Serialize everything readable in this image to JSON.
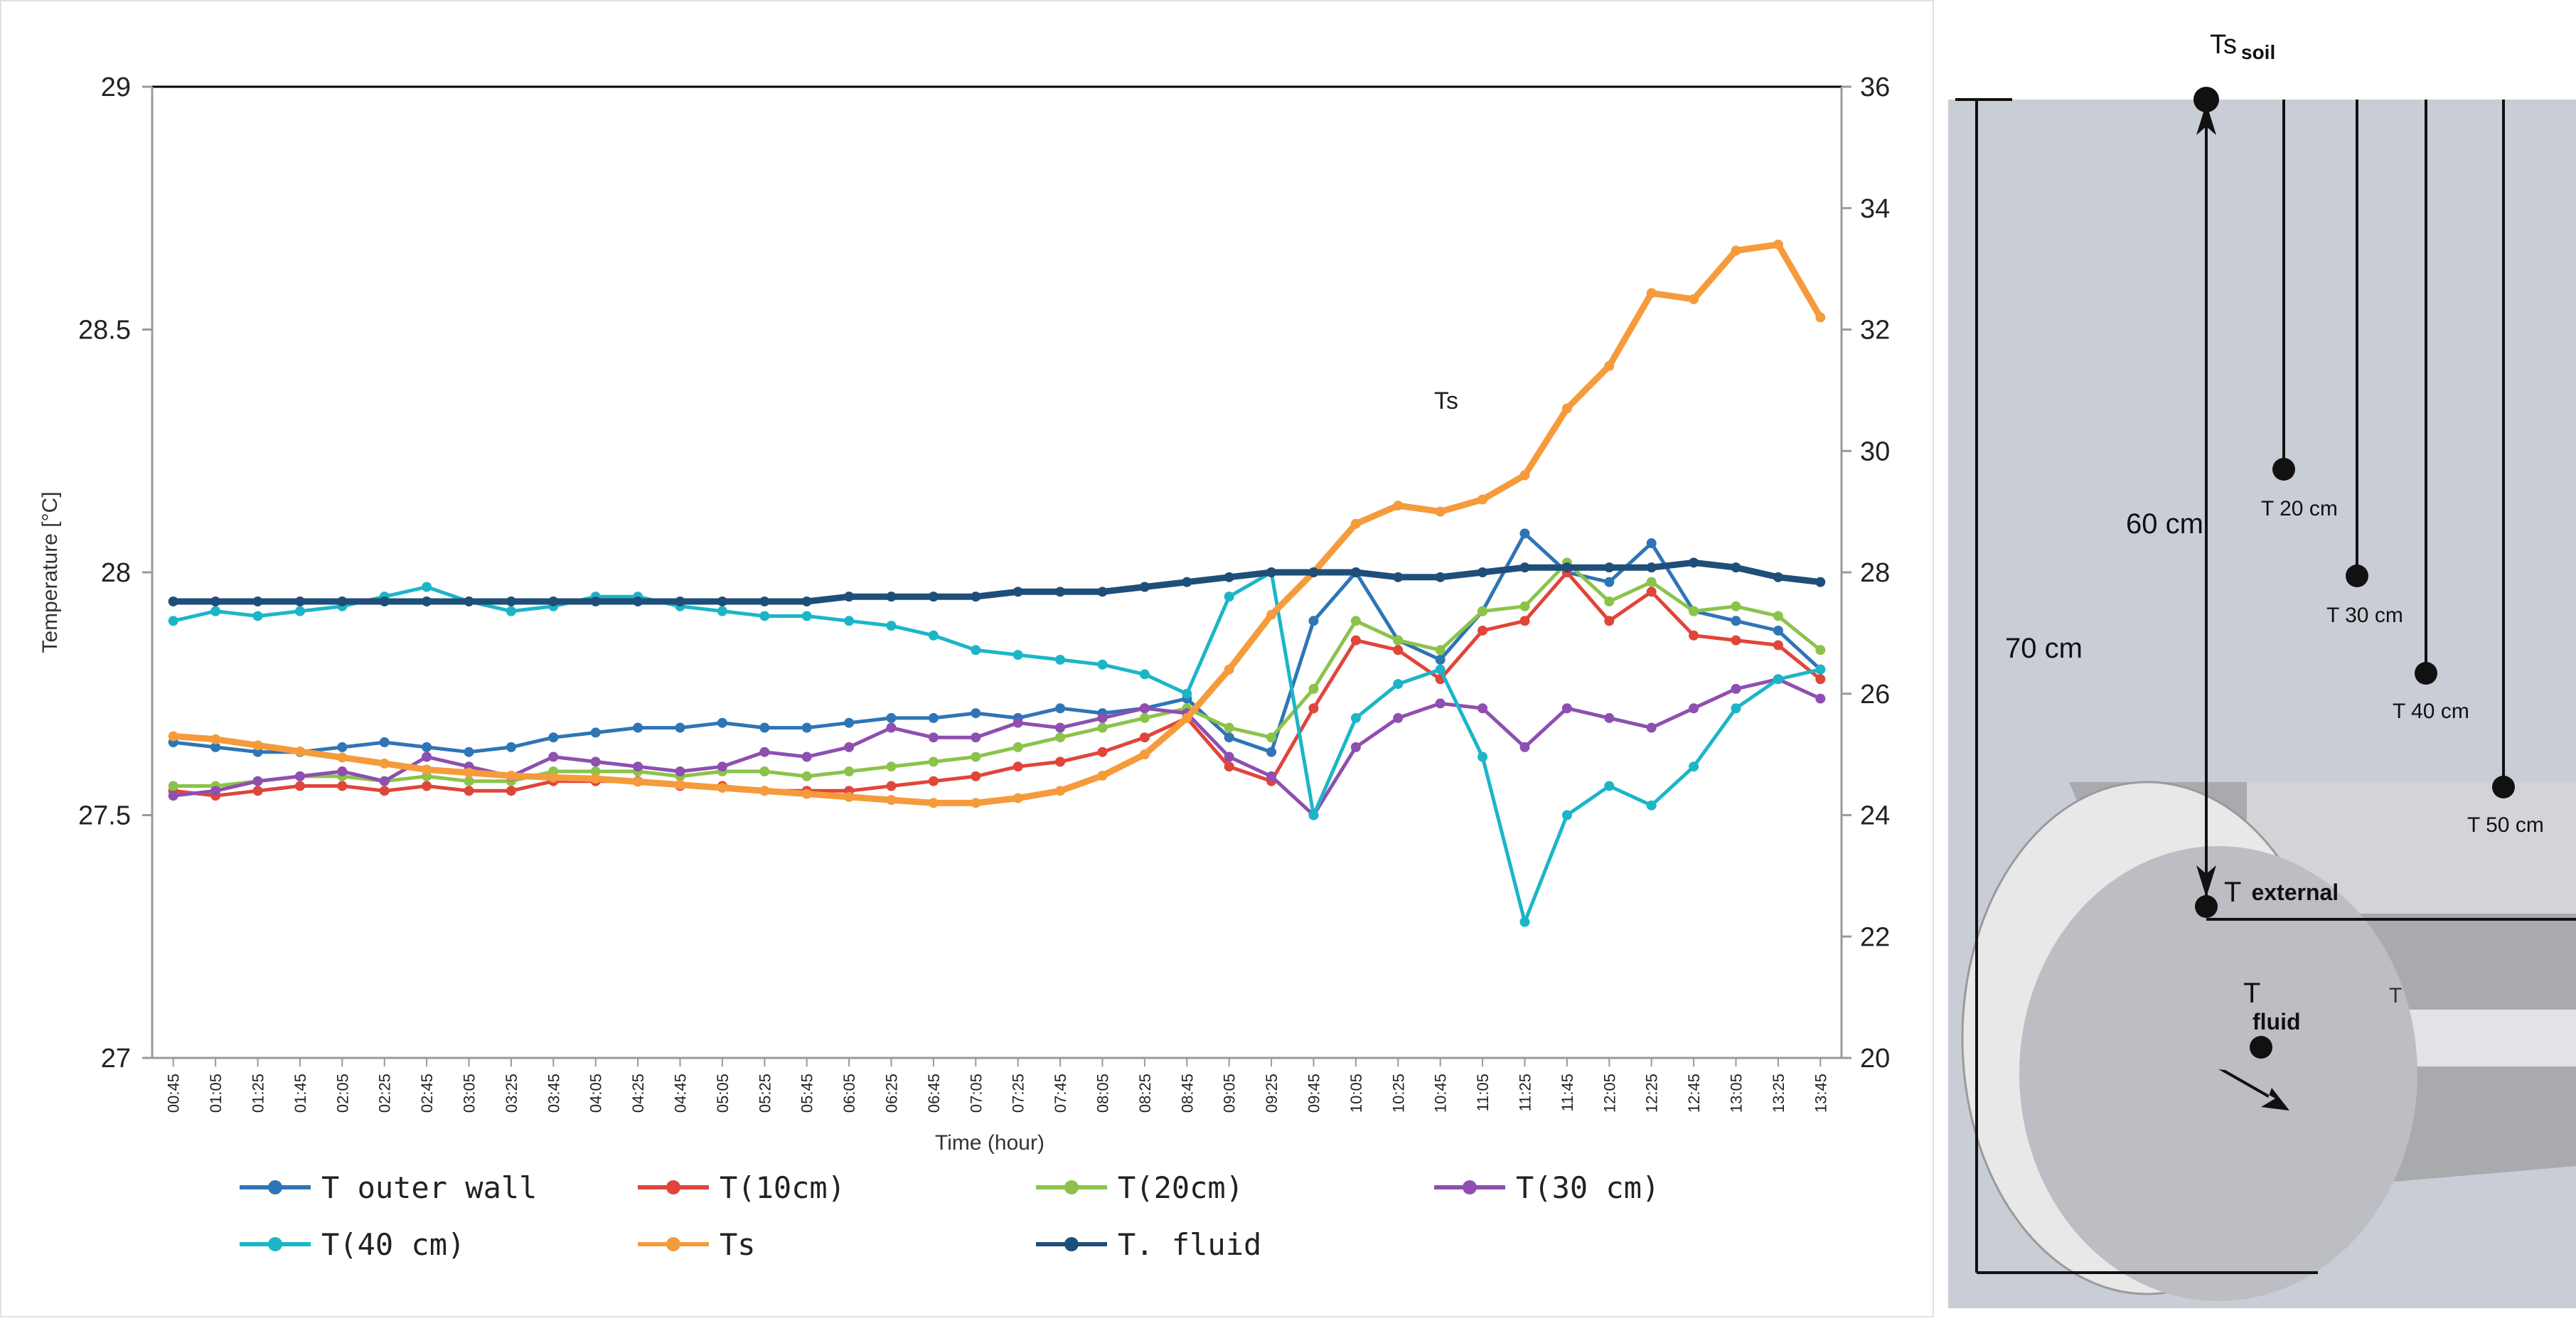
{
  "chart_data": {
    "type": "line",
    "ylabel": "Temperature [°C]",
    "xlabel": "Time (hour)",
    "ylim": [
      27,
      29
    ],
    "y_ticks": [
      "27",
      "27.5",
      "28",
      "28.5",
      "29"
    ],
    "y2lim": [
      20,
      36
    ],
    "y2_ticks": [
      "20",
      "22",
      "24",
      "26",
      "28",
      "30",
      "32",
      "34",
      "36"
    ],
    "grid": false,
    "legend_position": "bottom",
    "annotation": "Ts",
    "x": [
      "00:45",
      "01:05",
      "01:25",
      "01:45",
      "02:05",
      "02:25",
      "02:45",
      "03:05",
      "03:25",
      "03:45",
      "04:05",
      "04:25",
      "04:45",
      "05:05",
      "05:25",
      "05:45",
      "06:05",
      "06:25",
      "06:45",
      "07:05",
      "07:25",
      "07:45",
      "08:05",
      "08:25",
      "08:45",
      "09:05",
      "09:25",
      "09:45",
      "10:05",
      "10:25",
      "10:45",
      "11:05",
      "11:25",
      "11:45",
      "12:05",
      "12:25",
      "12:45",
      "13:05",
      "13:25",
      "13:45"
    ],
    "series": [
      {
        "name": "T outer wall",
        "axis": "left",
        "color": "#2E75B6",
        "values": [
          27.65,
          27.64,
          27.63,
          27.63,
          27.64,
          27.65,
          27.64,
          27.63,
          27.64,
          27.66,
          27.67,
          27.68,
          27.68,
          27.69,
          27.68,
          27.68,
          27.69,
          27.7,
          27.7,
          27.71,
          27.7,
          27.72,
          27.71,
          27.72,
          27.74,
          27.66,
          27.63,
          27.9,
          28.0,
          27.86,
          27.82,
          27.92,
          28.08,
          28.0,
          27.98,
          28.06,
          27.92,
          27.9,
          27.88,
          27.8
        ]
      },
      {
        "name": "T(10cm)",
        "axis": "left",
        "color": "#E0453A",
        "values": [
          27.55,
          27.54,
          27.55,
          27.56,
          27.56,
          27.55,
          27.56,
          27.55,
          27.55,
          27.57,
          27.57,
          27.57,
          27.56,
          27.56,
          27.55,
          27.55,
          27.55,
          27.56,
          27.57,
          27.58,
          27.6,
          27.61,
          27.63,
          27.66,
          27.7,
          27.6,
          27.57,
          27.72,
          27.86,
          27.84,
          27.78,
          27.88,
          27.9,
          28.0,
          27.9,
          27.96,
          27.87,
          27.86,
          27.85,
          27.78
        ]
      },
      {
        "name": "T(20cm)",
        "axis": "left",
        "color": "#8BC34A",
        "values": [
          27.56,
          27.56,
          27.57,
          27.58,
          27.58,
          27.57,
          27.58,
          27.57,
          27.57,
          27.59,
          27.59,
          27.59,
          27.58,
          27.59,
          27.59,
          27.58,
          27.59,
          27.6,
          27.61,
          27.62,
          27.64,
          27.66,
          27.68,
          27.7,
          27.72,
          27.68,
          27.66,
          27.76,
          27.9,
          27.86,
          27.84,
          27.92,
          27.93,
          28.02,
          27.94,
          27.98,
          27.92,
          27.93,
          27.91,
          27.84
        ]
      },
      {
        "name": "T(30 cm)",
        "axis": "left",
        "color": "#8E4FB0",
        "values": [
          27.54,
          27.55,
          27.57,
          27.58,
          27.59,
          27.57,
          27.62,
          27.6,
          27.58,
          27.62,
          27.61,
          27.6,
          27.59,
          27.6,
          27.63,
          27.62,
          27.64,
          27.68,
          27.66,
          27.66,
          27.69,
          27.68,
          27.7,
          27.72,
          27.71,
          27.62,
          27.58,
          27.5,
          27.64,
          27.7,
          27.73,
          27.72,
          27.64,
          27.72,
          27.7,
          27.68,
          27.72,
          27.76,
          27.78,
          27.74
        ]
      },
      {
        "name": "T(40 cm)",
        "axis": "left",
        "color": "#1CB5C7",
        "values": [
          27.9,
          27.92,
          27.91,
          27.92,
          27.93,
          27.95,
          27.97,
          27.94,
          27.92,
          27.93,
          27.95,
          27.95,
          27.93,
          27.92,
          27.91,
          27.91,
          27.9,
          27.89,
          27.87,
          27.84,
          27.83,
          27.82,
          27.81,
          27.79,
          27.75,
          27.95,
          28.0,
          27.5,
          27.7,
          27.77,
          27.8,
          27.62,
          27.28,
          27.5,
          27.56,
          27.52,
          27.6,
          27.72,
          27.78,
          27.8
        ]
      },
      {
        "name": "Ts",
        "axis": "right",
        "color": "#F59B3C",
        "values": [
          25.3,
          25.25,
          25.15,
          25.05,
          24.95,
          24.85,
          24.75,
          24.7,
          24.65,
          24.62,
          24.6,
          24.55,
          24.5,
          24.45,
          24.4,
          24.35,
          24.3,
          24.25,
          24.2,
          24.2,
          24.28,
          24.4,
          24.65,
          25.0,
          25.6,
          26.4,
          27.3,
          28.0,
          28.8,
          29.1,
          29.0,
          29.2,
          29.6,
          30.7,
          31.4,
          32.6,
          32.5,
          33.3,
          33.4,
          32.2
        ]
      },
      {
        "name": "T. fluid",
        "axis": "left",
        "color": "#1F4E79",
        "values": [
          27.94,
          27.94,
          27.94,
          27.94,
          27.94,
          27.94,
          27.94,
          27.94,
          27.94,
          27.94,
          27.94,
          27.94,
          27.94,
          27.94,
          27.94,
          27.94,
          27.95,
          27.95,
          27.95,
          27.95,
          27.96,
          27.96,
          27.96,
          27.97,
          27.98,
          27.99,
          28.0,
          28.0,
          28.0,
          27.99,
          27.99,
          28.0,
          28.01,
          28.01,
          28.01,
          28.01,
          28.02,
          28.01,
          27.99,
          27.98
        ]
      }
    ]
  },
  "diagram": {
    "top_label": "Ts",
    "top_sub": "soil",
    "depth_total": "70 cm",
    "depth_pipe": "60 cm",
    "probes": [
      {
        "label": "T 20 cm"
      },
      {
        "label": "T 30 cm"
      },
      {
        "label": "T 40 cm"
      },
      {
        "label": "T 50 cm"
      }
    ],
    "t_external": "T",
    "t_external_sub": "external",
    "t_fluid": "T",
    "t_fluid_sub": "fluid",
    "stray_mark": "T"
  }
}
